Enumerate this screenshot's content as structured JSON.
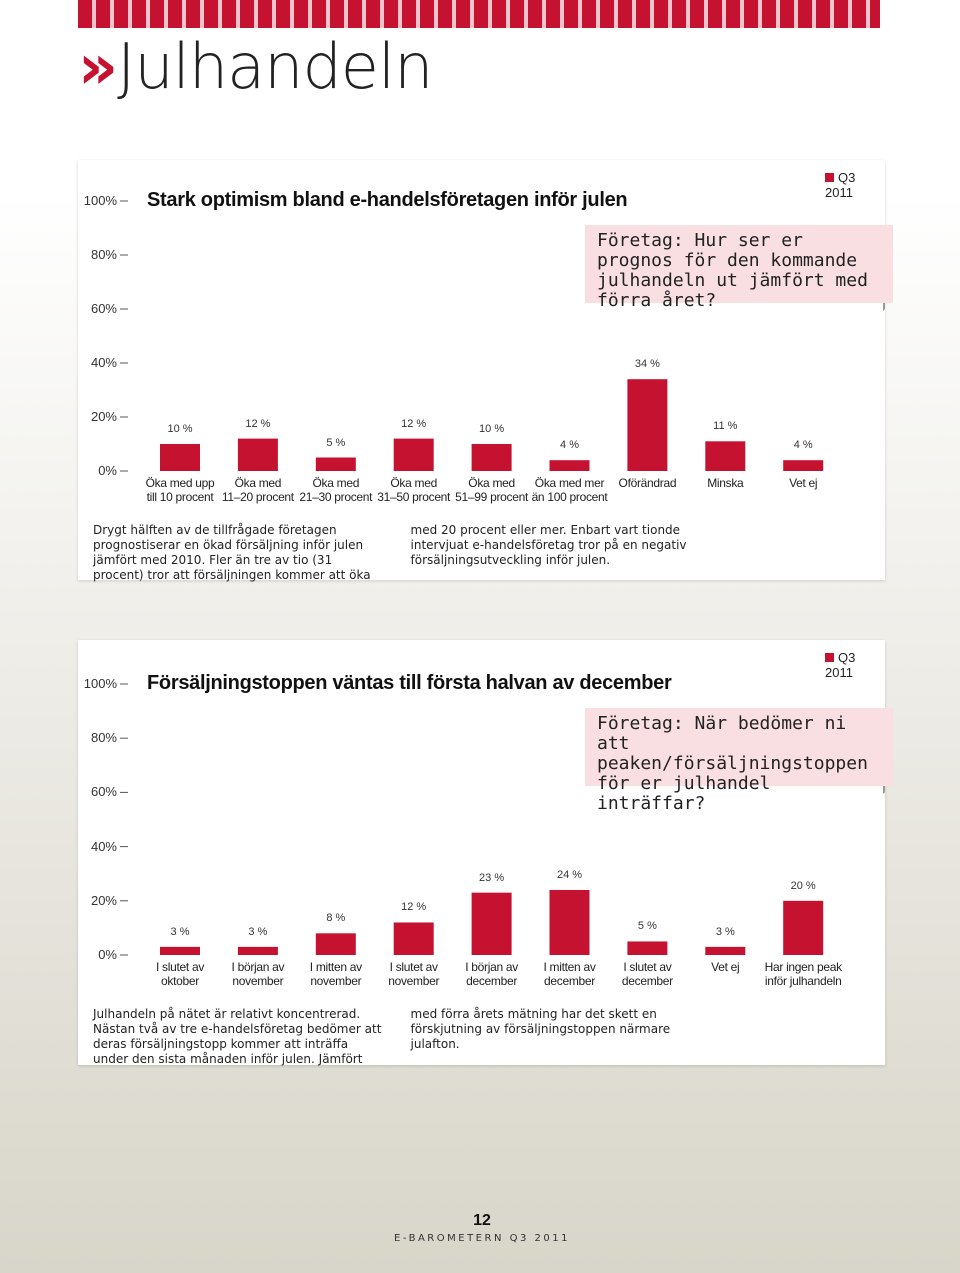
{
  "header": {
    "title": "Julhandeln"
  },
  "chart_data": [
    {
      "type": "bar",
      "title": "Stark optimism bland e-handelsföretagen inför julen",
      "legend": "Q3 2011",
      "question": "Företag: Hur ser er prognos för den kommande julhandeln ut jämfört med förra året?",
      "categories": [
        "Öka med upp\ntill 10 procent",
        "Öka med\n11–20 procent",
        "Öka med\n21–30 procent",
        "Öka med\n31–50 procent",
        "Öka med\n51–99 procent",
        "Öka med mer\nän 100 procent",
        "Oförändrad",
        "Minska",
        "Vet ej"
      ],
      "values": [
        10,
        12,
        5,
        12,
        10,
        4,
        34,
        11,
        4
      ],
      "value_labels": [
        "10 %",
        "12 %",
        "5 %",
        "12 %",
        "10 %",
        "4 %",
        "34 %",
        "11 %",
        "4 %"
      ],
      "color": "#c41230",
      "ylim": [
        0,
        100
      ],
      "yticks": [
        {
          "value": 0,
          "label": "0%"
        },
        {
          "value": 20,
          "label": "20%"
        },
        {
          "value": 40,
          "label": "40%"
        },
        {
          "value": 60,
          "label": "60%"
        },
        {
          "value": 80,
          "label": "80%"
        },
        {
          "value": 100,
          "label": "100%"
        }
      ],
      "body": "Drygt hälften av de tillfrågade företagen prognostiserar en ökad försäljning inför julen jämfört med 2010. Fler än tre av tio (31 procent) tror att försäljningen kommer att öka med 20 procent eller mer. Enbart vart tionde intervjuat e-handelsföretag tror på en negativ försäljningsutveckling inför julen."
    },
    {
      "type": "bar",
      "title": "Försäljningstoppen väntas till första halvan av december",
      "legend": "Q3 2011",
      "question": "Företag: När bedömer ni att peaken/försäljningstoppen för er julhandel inträffar?",
      "categories": [
        "I slutet av\noktober",
        "I början av\nnovember",
        "I mitten av\nnovember",
        "I slutet av\nnovember",
        "I början av\ndecember",
        "I mitten av\ndecember",
        "I slutet av\ndecember",
        "Vet ej",
        "Har ingen peak\ninför julhandeln"
      ],
      "values": [
        3,
        3,
        8,
        12,
        23,
        24,
        5,
        3,
        20
      ],
      "value_labels": [
        "3 %",
        "3 %",
        "8 %",
        "12 %",
        "23 %",
        "24 %",
        "5 %",
        "3 %",
        "20 %"
      ],
      "color": "#c41230",
      "ylim": [
        0,
        100
      ],
      "yticks": [
        {
          "value": 0,
          "label": "0%"
        },
        {
          "value": 20,
          "label": "20%"
        },
        {
          "value": 40,
          "label": "40%"
        },
        {
          "value": 60,
          "label": "60%"
        },
        {
          "value": 80,
          "label": "80%"
        },
        {
          "value": 100,
          "label": "100%"
        }
      ],
      "body": "Julhandeln på nätet är relativt koncentrerad. Nästan två av tre e-handelsföretag bedömer att deras försäljningstopp kommer att inträffa under den sista månaden inför julen. Jämfört med förra årets mätning har det skett en förskjutning av försäljningstoppen närmare julafton."
    }
  ],
  "footer": {
    "page": "12",
    "publication": "E-BAROMETERN Q3 2011"
  }
}
